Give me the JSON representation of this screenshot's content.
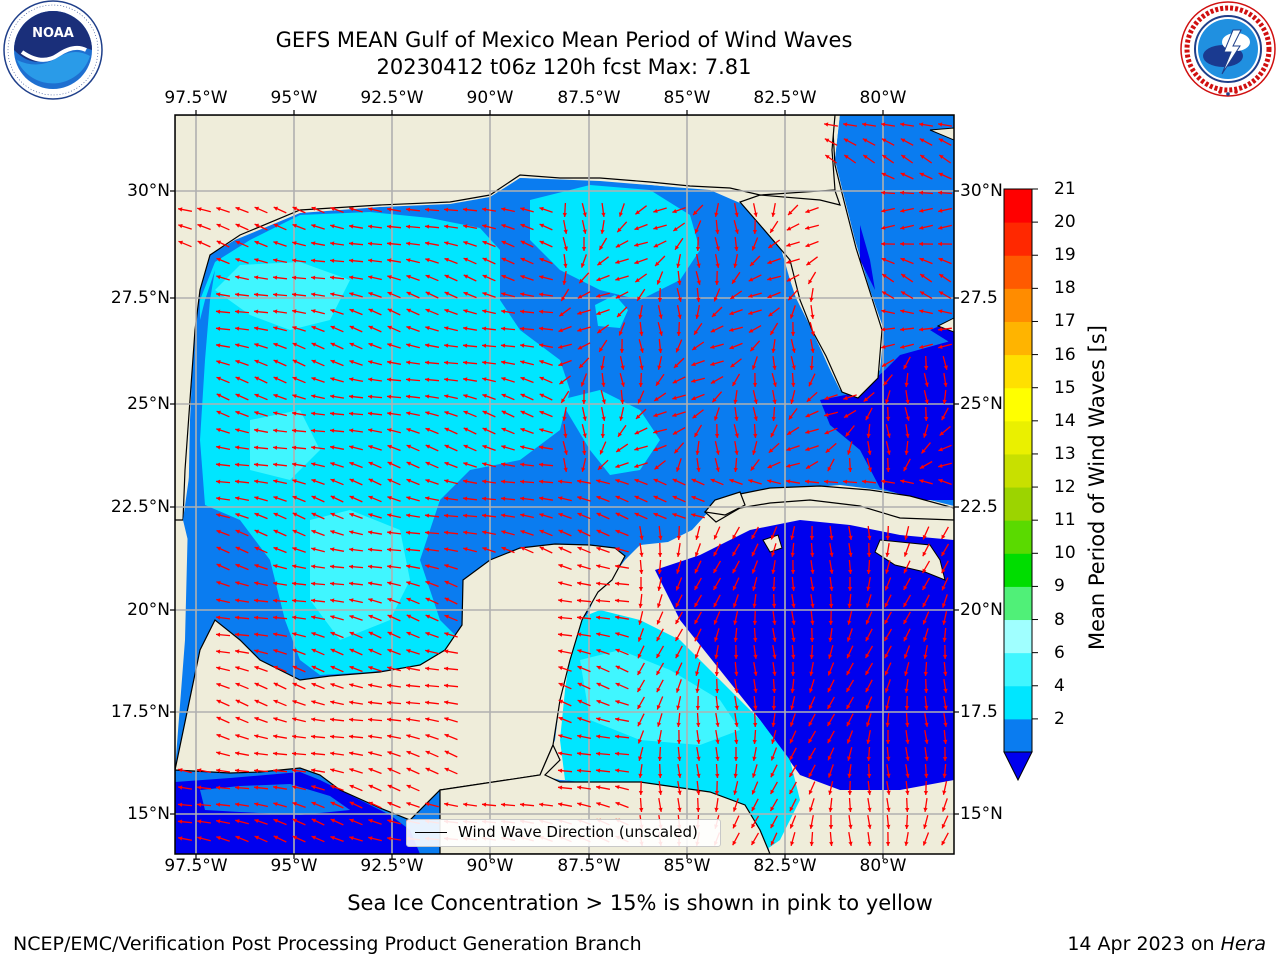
{
  "header": {
    "title_line1": "GEFS MEAN Gulf of Mexico Mean Period of Wind Waves",
    "title_line2": "20230412 t06z 120h fcst   Max: 7.81"
  },
  "logos": {
    "left": {
      "name": "noaa-logo",
      "text": "NOAA",
      "ring_text": "NATIONAL OCEANIC AND ATMOSPHERIC ADMINISTRATION · U.S. DEPARTMENT OF COMMERCE"
    },
    "right": {
      "name": "nws-logo",
      "ring_text": "NATIONAL WEATHER SERVICE"
    }
  },
  "map": {
    "lon_ticks_top": [
      "97.5°W",
      "95°W",
      "92.5°W",
      "90°W",
      "87.5°W",
      "85°W",
      "82.5°W",
      "80°W"
    ],
    "lon_ticks_bottom": [
      "97.5°W",
      "95°W",
      "92.5°W",
      "90°W",
      "87.5°W",
      "85°W",
      "82.5°W",
      "80°W"
    ],
    "lat_ticks_left": [
      "30°N",
      "27.5°N",
      "25°N",
      "22.5°N",
      "20°N",
      "17.5°N",
      "15°N"
    ],
    "lat_ticks_right": [
      "30°N",
      "27.5",
      "25°N",
      "22.5",
      "20°N",
      "17.5",
      "15°N"
    ],
    "legend_label": "Wind Wave Direction (unscaled)",
    "colors": {
      "land": "#efedda",
      "ocean_default": "#0a7cf0",
      "arrow": "#ff0000",
      "grid": "#b0b0b0"
    }
  },
  "colorbar": {
    "title": "Mean Period of Wind Waves [s]",
    "labels": [
      "21",
      "20",
      "19",
      "18",
      "17",
      "16",
      "15",
      "14",
      "13",
      "12",
      "11",
      "10",
      "9",
      "8",
      "6",
      "4",
      "2"
    ],
    "levels": [
      2,
      4,
      6,
      8,
      9,
      10,
      11,
      12,
      13,
      14,
      15,
      16,
      17,
      18,
      19,
      20,
      21
    ],
    "colors": [
      "#0a7cf0",
      "#00e6ff",
      "#40f6ff",
      "#a0ffff",
      "#50f078",
      "#00dd00",
      "#5ada00",
      "#9cd400",
      "#c8e000",
      "#eaf000",
      "#ffff00",
      "#ffe000",
      "#ffb400",
      "#ff8c00",
      "#ff5a00",
      "#ff2800",
      "#ff0000"
    ],
    "under_color": "#0000ee"
  },
  "footer": {
    "note": "Sea Ice Concentration > 15% is shown in pink to yellow",
    "credit": "NCEP/EMC/Verification Post Processing Product Generation Branch",
    "date": "14 Apr 2023 on ",
    "machine": "Hera"
  }
}
